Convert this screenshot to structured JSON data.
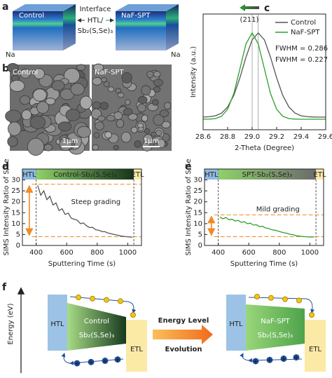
{
  "panel_a": {
    "letter": "a",
    "left_label": "Control",
    "right_label": "NaF-SPT",
    "interface_lines": [
      "Interface",
      "HTL/",
      "Sb₂(S,Se)₃"
    ],
    "left_na": "Na",
    "right_na": "Na"
  },
  "panel_b": {
    "letter": "b",
    "left_label": "Control",
    "right_label": "NaF-SPT",
    "left_scale": "1μm",
    "right_scale": "1μm"
  },
  "chart_data": [
    {
      "letter": "c",
      "type": "line",
      "x_label": "2-Theta (Degree)",
      "y_label": "Intensity (a.u.)",
      "xlim": [
        28.6,
        29.6
      ],
      "xticks": [
        28.6,
        28.8,
        {
          "value": 29.0,
          "label": "29.0"
        },
        29.2,
        29.4,
        29.6
      ],
      "ylim": [
        0,
        1.1
      ],
      "legend": "upper right",
      "peak_label": "(211)",
      "reference_lines_x": [
        29.0,
        29.05
      ],
      "annotations": [
        {
          "text": "FWHM = 0.286",
          "color": "#555555"
        },
        {
          "text": "FWHM = 0.227",
          "color": "#2ca02c"
        }
      ],
      "series": [
        {
          "name": "Control",
          "color": "#555555",
          "x": [
            28.6,
            28.65,
            28.7,
            28.75,
            28.8,
            28.85,
            28.9,
            28.95,
            29.0,
            29.05,
            29.1,
            29.15,
            29.2,
            29.25,
            29.3,
            29.35,
            29.4,
            29.45,
            29.5,
            29.55,
            29.6
          ],
          "values": [
            0.12,
            0.124,
            0.133,
            0.158,
            0.216,
            0.326,
            0.493,
            0.69,
            0.855,
            0.92,
            0.855,
            0.69,
            0.493,
            0.326,
            0.216,
            0.158,
            0.133,
            0.124,
            0.121,
            0.12,
            0.12
          ]
        },
        {
          "name": "NaF-SPT",
          "color": "#2ca02c",
          "x": [
            28.6,
            28.65,
            28.7,
            28.75,
            28.8,
            28.85,
            28.9,
            28.95,
            29.0,
            29.05,
            29.1,
            29.15,
            29.2,
            29.25,
            29.3,
            29.35,
            29.4,
            29.45,
            29.5,
            29.55,
            29.6
          ],
          "values": [
            0.1,
            0.101,
            0.106,
            0.128,
            0.195,
            0.344,
            0.579,
            0.817,
            0.92,
            0.817,
            0.579,
            0.344,
            0.195,
            0.128,
            0.106,
            0.101,
            0.1,
            0.1,
            0.1,
            0.1,
            0.1
          ]
        }
      ]
    },
    {
      "letter": "d",
      "type": "line",
      "x_label": "Sputtering Time (s)",
      "y_label": "SIMS Intensity Ratio of S/Se",
      "xlim": [
        310,
        1090
      ],
      "xticks": [
        400,
        600,
        800,
        1000
      ],
      "ylim": [
        0,
        35
      ],
      "yticks": [
        0,
        5,
        10,
        15,
        20,
        25,
        30
      ],
      "regions": [
        {
          "label": "HTL",
          "start": 310,
          "end": 400,
          "colors": [
            "#8fb9e3",
            "#8fb9e3"
          ],
          "label_color": "#ffffff"
        },
        {
          "label": "Control-Sb₂(S,Se)₃",
          "start": 400,
          "end": 1040,
          "colors": [
            "#8fd16a",
            "#16331a"
          ],
          "label_color": "#ffffff"
        },
        {
          "label": "ETL",
          "start": 1040,
          "end": 1090,
          "colors": [
            "#fbe9a6",
            "#fbe9a6"
          ],
          "label_color": "#222222"
        }
      ],
      "reference_lines_y": [
        28,
        4
      ],
      "annotation": {
        "text": "Steep grading",
        "color": "#f08a24"
      },
      "series": [
        {
          "color": "#555555",
          "x": [
            410,
            430,
            450,
            470,
            490,
            510,
            530,
            550,
            570,
            590,
            610,
            630,
            650,
            670,
            690,
            710,
            730,
            750,
            770,
            790,
            810,
            830,
            850,
            870,
            890,
            910,
            930,
            950,
            970,
            990,
            1010,
            1030
          ],
          "values": [
            27.5,
            23.0,
            25.0,
            21.0,
            22.5,
            18.5,
            19.5,
            16.0,
            16.8,
            14.2,
            14.8,
            12.5,
            12.0,
            11.5,
            10.0,
            10.3,
            9.0,
            8.2,
            8.3,
            7.2,
            7.0,
            6.4,
            6.3,
            5.7,
            5.4,
            5.0,
            4.8,
            4.4,
            4.2,
            4.0,
            3.9,
            3.8
          ]
        }
      ]
    },
    {
      "letter": "e",
      "type": "line",
      "x_label": "Sputtering Time (s)",
      "y_label": "SIMS Intensity Ratio of S/Se",
      "xlim": [
        310,
        1090
      ],
      "xticks": [
        400,
        600,
        800,
        1000
      ],
      "ylim": [
        0,
        35
      ],
      "yticks": [
        0,
        5,
        10,
        15,
        20,
        25,
        30
      ],
      "regions": [
        {
          "label": "HTL",
          "start": 310,
          "end": 400,
          "colors": [
            "#8fb9e3",
            "#8fb9e3"
          ],
          "label_color": "#ffffff"
        },
        {
          "label": "SPT-Sb₂(S,Se)₃",
          "start": 400,
          "end": 1040,
          "colors": [
            "#8fd16a",
            "#6b6b6b"
          ],
          "label_color": "#ffffff"
        },
        {
          "label": "ETL",
          "start": 1040,
          "end": 1090,
          "colors": [
            "#fbe9a6",
            "#fbe9a6"
          ],
          "label_color": "#222222"
        }
      ],
      "reference_lines_y": [
        14,
        4
      ],
      "annotation": {
        "text": "Mild grading",
        "color": "#f08a24"
      },
      "series": [
        {
          "color": "#2ca02c",
          "x": [
            410,
            430,
            450,
            470,
            490,
            510,
            530,
            550,
            570,
            590,
            610,
            630,
            650,
            670,
            690,
            710,
            730,
            750,
            770,
            790,
            810,
            830,
            850,
            870,
            890,
            910,
            930,
            950,
            970,
            990,
            1010,
            1030
          ],
          "values": [
            13.0,
            12.2,
            12.8,
            11.8,
            12.0,
            11.2,
            11.5,
            10.6,
            10.9,
            10.0,
            10.2,
            9.3,
            9.5,
            8.6,
            8.8,
            8.0,
            7.8,
            7.2,
            7.0,
            6.6,
            6.2,
            5.8,
            5.6,
            5.1,
            4.9,
            4.5,
            4.3,
            4.1,
            4.0,
            3.9,
            3.9,
            3.9
          ]
        }
      ]
    }
  ],
  "panel_f": {
    "letter": "f",
    "axis_label": "Energy (eV)",
    "hole_symbol": "+",
    "left": {
      "htl": "HTL",
      "absorber_top": "Control",
      "absorber_bottom": "Sb₂(S,Se)₃",
      "etl": "ETL"
    },
    "middle": [
      "Energy Level",
      "Evolution"
    ],
    "right": {
      "htl": "HTL",
      "absorber_top": "NaF-SPT",
      "absorber_bottom": "Sb₂(S,Se)₃",
      "etl": "ETL"
    }
  }
}
